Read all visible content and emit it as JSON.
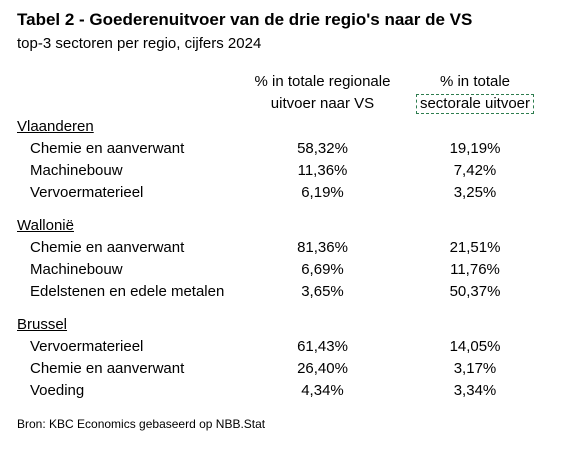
{
  "title": "Tabel 2 - Goederenuitvoer van de drie regio's naar de VS",
  "subtitle": "top-3 sectoren per regio, cijfers 2024",
  "columns": {
    "col1_line1": "% in totale regionale",
    "col1_line2": "uitvoer naar VS",
    "col2_line1": "% in totale",
    "col2_line2": "sectorale uitvoer"
  },
  "regions": [
    {
      "name": "Vlaanderen",
      "rows": [
        {
          "sector": "Chemie en aanverwant",
          "regional": "58,32%",
          "sectoral": "19,19%"
        },
        {
          "sector": "Machinebouw",
          "regional": "11,36%",
          "sectoral": "7,42%"
        },
        {
          "sector": "Vervoermaterieel",
          "regional": "6,19%",
          "sectoral": "3,25%"
        }
      ]
    },
    {
      "name": "Wallonië",
      "rows": [
        {
          "sector": "Chemie en aanverwant",
          "regional": "81,36%",
          "sectoral": "21,51%"
        },
        {
          "sector": "Machinebouw",
          "regional": "6,69%",
          "sectoral": "11,76%"
        },
        {
          "sector": "Edelstenen en edele metalen",
          "regional": "3,65%",
          "sectoral": "50,37%"
        }
      ]
    },
    {
      "name": "Brussel",
      "rows": [
        {
          "sector": "Vervoermaterieel",
          "regional": "61,43%",
          "sectoral": "14,05%"
        },
        {
          "sector": "Chemie en aanverwant",
          "regional": "26,40%",
          "sectoral": "3,17%"
        },
        {
          "sector": "Voeding",
          "regional": "4,34%",
          "sectoral": "3,34%"
        }
      ]
    }
  ],
  "source": "Bron: KBC Economics gebaseerd op NBB.Stat",
  "colors": {
    "highlight_border": "#2e7d4f"
  }
}
